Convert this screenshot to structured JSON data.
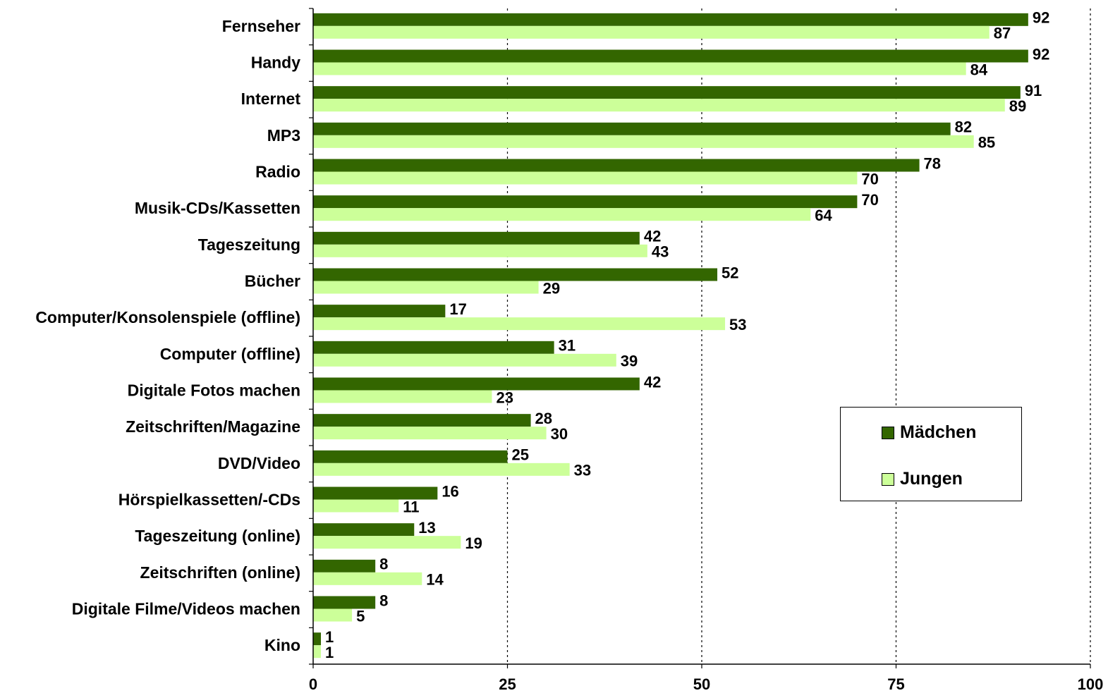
{
  "chart_data": {
    "type": "bar",
    "orientation": "horizontal",
    "categories": [
      "Fernseher",
      "Handy",
      "Internet",
      "MP3",
      "Radio",
      "Musik-CDs/Kassetten",
      "Tageszeitung",
      "Bücher",
      "Computer/Konsolenspiele (offline)",
      "Computer (offline)",
      "Digitale Fotos machen",
      "Zeitschriften/Magazine",
      "DVD/Video",
      "Hörspielkassetten/-CDs",
      "Tageszeitung (online)",
      "Zeitschriften (online)",
      "Digitale Filme/Videos machen",
      "Kino"
    ],
    "series": [
      {
        "name": "Mädchen",
        "color": "#336600",
        "values": [
          92,
          92,
          91,
          82,
          78,
          70,
          42,
          52,
          17,
          31,
          42,
          28,
          25,
          16,
          13,
          8,
          8,
          1
        ]
      },
      {
        "name": "Jungen",
        "color": "#ccff99",
        "values": [
          87,
          84,
          89,
          85,
          70,
          64,
          43,
          29,
          53,
          39,
          23,
          30,
          33,
          11,
          19,
          14,
          5,
          1
        ]
      }
    ],
    "xlim": [
      0,
      100
    ],
    "xticks": [
      0,
      25,
      50,
      75,
      100
    ],
    "grid": "vertical dotted",
    "legend_position": "bottom-right"
  }
}
